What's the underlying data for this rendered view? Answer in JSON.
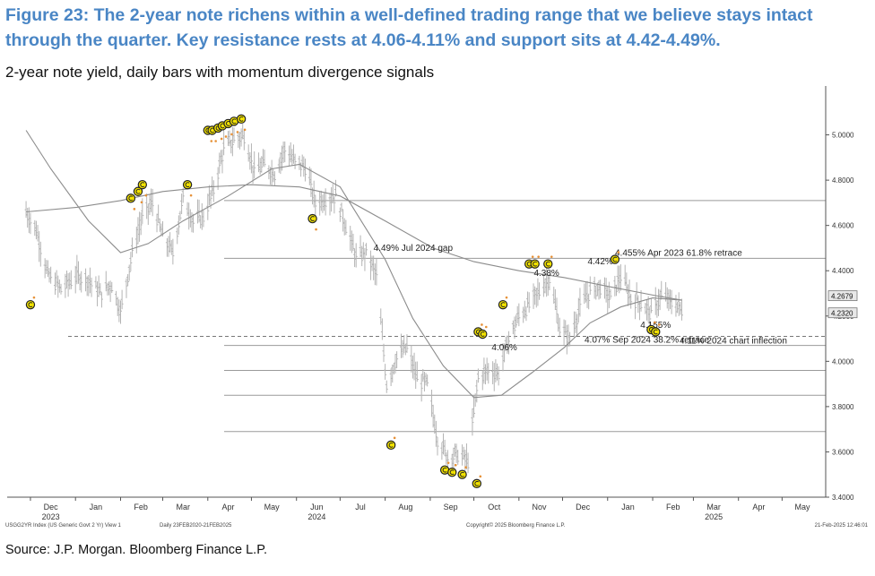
{
  "title": "Figure 23: The 2-year note richens within a well-defined trading range that we believe stays intact through the quarter. Key resistance rests at 4.06-4.11% and support sits at 4.42-4.49%.",
  "subtitle": "2-year note yield, daily bars with momentum divergence signals",
  "source": "Source: J.P. Morgan. Bloomberg Finance L.P.",
  "colors": {
    "title": "#4a86c5",
    "bars": "#b4b4b4",
    "moving_averages": "#8c8c8c",
    "levels": "#9a9a9a",
    "signal_fill": "#f2e200",
    "signal_outline": "#222222",
    "marker": "#e69138"
  },
  "chart_data": {
    "type": "line",
    "y_axis_side": "right",
    "ylim": [
      3.4,
      5.2
    ],
    "yticks": [
      "5.0000",
      "4.8000",
      "4.6000",
      "4.4000",
      "4.2000",
      "4.0000",
      "3.8000",
      "3.6000",
      "3.4000"
    ],
    "x_months": [
      "Dec",
      "Jan",
      "Feb",
      "Mar",
      "Apr",
      "May",
      "Jun",
      "Jul",
      "Aug",
      "Sep",
      "Oct",
      "Nov",
      "Dec",
      "Jan",
      "Feb",
      "Mar",
      "Apr",
      "May"
    ],
    "x_years": [
      "2023",
      "2024",
      "2025"
    ],
    "last_values": [
      "4.2679",
      "4.2320"
    ],
    "series": [
      {
        "values": [
          {
            "x": "2023-11-28",
            "y": 4.66
          },
          {
            "x": "2023-12-05",
            "y": 4.58
          },
          {
            "x": "2023-12-13",
            "y": 4.38
          },
          {
            "x": "2023-12-22",
            "y": 4.32
          },
          {
            "x": "2024-01-02",
            "y": 4.38
          },
          {
            "x": "2024-01-10",
            "y": 4.36
          },
          {
            "x": "2024-01-18",
            "y": 4.3
          },
          {
            "x": "2024-01-26",
            "y": 4.34
          },
          {
            "x": "2024-02-01",
            "y": 4.22
          },
          {
            "x": "2024-02-09",
            "y": 4.48
          },
          {
            "x": "2024-02-16",
            "y": 4.64
          },
          {
            "x": "2024-02-23",
            "y": 4.7
          },
          {
            "x": "2024-03-01",
            "y": 4.55
          },
          {
            "x": "2024-03-08",
            "y": 4.48
          },
          {
            "x": "2024-03-15",
            "y": 4.72
          },
          {
            "x": "2024-03-22",
            "y": 4.62
          },
          {
            "x": "2024-03-29",
            "y": 4.64
          },
          {
            "x": "2024-04-05",
            "y": 4.76
          },
          {
            "x": "2024-04-12",
            "y": 4.94
          },
          {
            "x": "2024-04-19",
            "y": 4.98
          },
          {
            "x": "2024-04-26",
            "y": 5.0
          },
          {
            "x": "2024-05-03",
            "y": 4.84
          },
          {
            "x": "2024-05-10",
            "y": 4.87
          },
          {
            "x": "2024-05-17",
            "y": 4.83
          },
          {
            "x": "2024-05-24",
            "y": 4.94
          },
          {
            "x": "2024-05-31",
            "y": 4.88
          },
          {
            "x": "2024-06-07",
            "y": 4.86
          },
          {
            "x": "2024-06-14",
            "y": 4.7
          },
          {
            "x": "2024-06-21",
            "y": 4.72
          },
          {
            "x": "2024-06-28",
            "y": 4.73
          },
          {
            "x": "2024-07-05",
            "y": 4.6
          },
          {
            "x": "2024-07-12",
            "y": 4.46
          },
          {
            "x": "2024-07-19",
            "y": 4.48
          },
          {
            "x": "2024-07-26",
            "y": 4.38
          },
          {
            "x": "2024-08-02",
            "y": 3.9
          },
          {
            "x": "2024-08-09",
            "y": 4.02
          },
          {
            "x": "2024-08-16",
            "y": 4.06
          },
          {
            "x": "2024-08-23",
            "y": 3.92
          },
          {
            "x": "2024-08-30",
            "y": 3.9
          },
          {
            "x": "2024-09-06",
            "y": 3.66
          },
          {
            "x": "2024-09-13",
            "y": 3.58
          },
          {
            "x": "2024-09-20",
            "y": 3.59
          },
          {
            "x": "2024-09-27",
            "y": 3.56
          },
          {
            "x": "2024-10-04",
            "y": 3.93
          },
          {
            "x": "2024-10-11",
            "y": 3.96
          },
          {
            "x": "2024-10-18",
            "y": 3.95
          },
          {
            "x": "2024-10-25",
            "y": 4.1
          },
          {
            "x": "2024-11-01",
            "y": 4.2
          },
          {
            "x": "2024-11-08",
            "y": 4.25
          },
          {
            "x": "2024-11-15",
            "y": 4.31
          },
          {
            "x": "2024-11-22",
            "y": 4.37
          },
          {
            "x": "2024-11-29",
            "y": 4.15
          },
          {
            "x": "2024-12-06",
            "y": 4.1
          },
          {
            "x": "2024-12-13",
            "y": 4.24
          },
          {
            "x": "2024-12-20",
            "y": 4.31
          },
          {
            "x": "2024-12-27",
            "y": 4.33
          },
          {
            "x": "2025-01-03",
            "y": 4.28
          },
          {
            "x": "2025-01-10",
            "y": 4.38
          },
          {
            "x": "2025-01-17",
            "y": 4.28
          },
          {
            "x": "2025-01-24",
            "y": 4.26
          },
          {
            "x": "2025-01-31",
            "y": 4.21
          },
          {
            "x": "2025-02-07",
            "y": 4.29
          },
          {
            "x": "2025-02-14",
            "y": 4.26
          },
          {
            "x": "2025-02-21",
            "y": 4.23
          }
        ]
      },
      {
        "values": [
          {
            "x": "2023-11-28",
            "y": 4.66
          },
          {
            "x": "2024-01-02",
            "y": 4.68
          },
          {
            "x": "2024-02-01",
            "y": 4.71
          },
          {
            "x": "2024-03-01",
            "y": 4.75
          },
          {
            "x": "2024-04-01",
            "y": 4.77
          },
          {
            "x": "2024-05-01",
            "y": 4.78
          },
          {
            "x": "2024-06-03",
            "y": 4.77
          },
          {
            "x": "2024-07-01",
            "y": 4.73
          },
          {
            "x": "2024-08-01",
            "y": 4.62
          },
          {
            "x": "2024-09-03",
            "y": 4.5
          },
          {
            "x": "2024-10-01",
            "y": 4.44
          },
          {
            "x": "2024-11-01",
            "y": 4.4
          },
          {
            "x": "2024-12-02",
            "y": 4.37
          },
          {
            "x": "2025-01-02",
            "y": 4.33
          },
          {
            "x": "2025-02-03",
            "y": 4.29
          },
          {
            "x": "2025-02-21",
            "y": 4.27
          }
        ]
      },
      {
        "values": [
          {
            "x": "2023-11-28",
            "y": 5.02
          },
          {
            "x": "2023-12-15",
            "y": 4.85
          },
          {
            "x": "2024-01-10",
            "y": 4.62
          },
          {
            "x": "2024-02-01",
            "y": 4.48
          },
          {
            "x": "2024-02-20",
            "y": 4.52
          },
          {
            "x": "2024-03-15",
            "y": 4.62
          },
          {
            "x": "2024-04-15",
            "y": 4.73
          },
          {
            "x": "2024-05-15",
            "y": 4.85
          },
          {
            "x": "2024-06-03",
            "y": 4.87
          },
          {
            "x": "2024-07-01",
            "y": 4.77
          },
          {
            "x": "2024-08-01",
            "y": 4.45
          },
          {
            "x": "2024-08-20",
            "y": 4.19
          },
          {
            "x": "2024-09-10",
            "y": 3.98
          },
          {
            "x": "2024-10-01",
            "y": 3.84
          },
          {
            "x": "2024-10-20",
            "y": 3.85
          },
          {
            "x": "2024-11-10",
            "y": 3.95
          },
          {
            "x": "2024-12-02",
            "y": 4.06
          },
          {
            "x": "2024-12-20",
            "y": 4.17
          },
          {
            "x": "2025-01-10",
            "y": 4.24
          },
          {
            "x": "2025-02-01",
            "y": 4.28
          },
          {
            "x": "2025-02-21",
            "y": 4.27
          }
        ]
      }
    ],
    "levels": [
      {
        "y": 4.71,
        "label": ""
      },
      {
        "y": 4.455,
        "label": "4.455% Apr 2023 61.8% retrace"
      },
      {
        "y": 4.11,
        "label": "4.11% 2024 chart inflection",
        "dashed": true
      },
      {
        "y": 4.07,
        "label": "4.07% Sep 2024 38.2% retrace"
      },
      {
        "y": 3.96,
        "label": ""
      },
      {
        "y": 3.85,
        "label": ""
      },
      {
        "y": 3.69,
        "label": ""
      }
    ],
    "annotations": [
      {
        "text": "4.49% Jul 2024 gap",
        "x": "2024-07-24",
        "y": 4.48
      },
      {
        "text": "4.38%",
        "x": "2024-11-20",
        "y": 4.37
      },
      {
        "text": "4.42%",
        "x": "2024-12-27",
        "y": 4.42
      },
      {
        "text": "4.155%",
        "x": "2025-02-03",
        "y": 4.14
      },
      {
        "text": "4.06%",
        "x": "2024-10-22",
        "y": 4.04
      }
    ],
    "signals": [
      {
        "x": "2023-12-01",
        "y": 4.25
      },
      {
        "x": "2024-02-08",
        "y": 4.72
      },
      {
        "x": "2024-02-13",
        "y": 4.75
      },
      {
        "x": "2024-02-16",
        "y": 4.78
      },
      {
        "x": "2024-03-18",
        "y": 4.78
      },
      {
        "x": "2024-04-01",
        "y": 5.02
      },
      {
        "x": "2024-04-04",
        "y": 5.02
      },
      {
        "x": "2024-04-08",
        "y": 5.03
      },
      {
        "x": "2024-04-11",
        "y": 5.04
      },
      {
        "x": "2024-04-15",
        "y": 5.05
      },
      {
        "x": "2024-04-19",
        "y": 5.06
      },
      {
        "x": "2024-04-24",
        "y": 5.07
      },
      {
        "x": "2024-06-12",
        "y": 4.63
      },
      {
        "x": "2024-08-05",
        "y": 3.63
      },
      {
        "x": "2024-09-11",
        "y": 3.52
      },
      {
        "x": "2024-09-16",
        "y": 3.51
      },
      {
        "x": "2024-09-23",
        "y": 3.5
      },
      {
        "x": "2024-10-03",
        "y": 3.46
      },
      {
        "x": "2024-10-04",
        "y": 4.13
      },
      {
        "x": "2024-10-07",
        "y": 4.12
      },
      {
        "x": "2024-10-21",
        "y": 4.25
      },
      {
        "x": "2024-11-08",
        "y": 4.43
      },
      {
        "x": "2024-11-12",
        "y": 4.43
      },
      {
        "x": "2024-11-21",
        "y": 4.43
      },
      {
        "x": "2025-01-06",
        "y": 4.45
      },
      {
        "x": "2025-01-31",
        "y": 4.14
      },
      {
        "x": "2025-02-03",
        "y": 4.13
      }
    ],
    "footer": {
      "left": "USGG2YR Index (US Generic Govt 2 Yr) View 1",
      "center_left": "Daily 23FEB2020-21FEB2025",
      "center_right": "Copyright© 2025 Bloomberg Finance L.P.",
      "right": "21-Feb-2025 12:46:01"
    }
  }
}
